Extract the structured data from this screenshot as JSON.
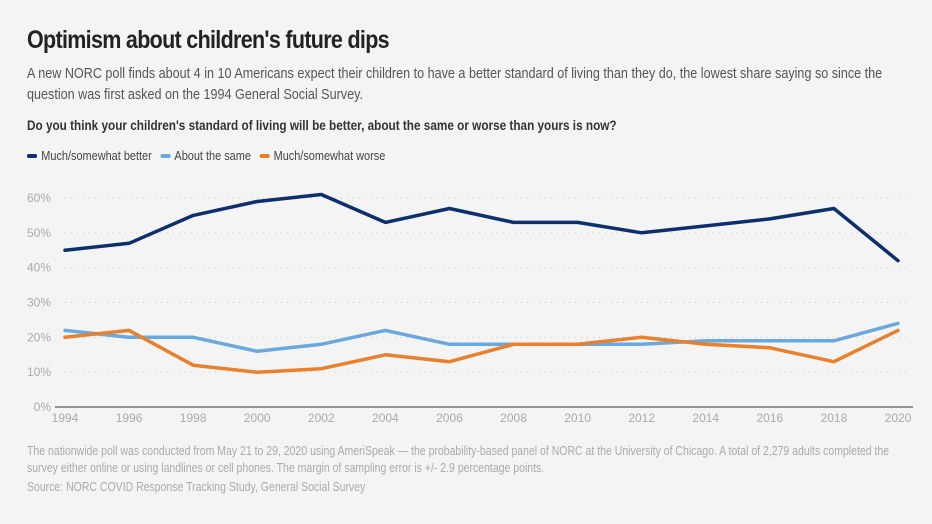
{
  "header": {
    "title": "Optimism about children's future dips",
    "subtitle": "A new NORC poll finds about 4 in 10 Americans expect their children to have a better standard of living than they do, the lowest share saying so since the question was first asked on the 1994 General Social Survey.",
    "question": "Do you think your children's standard of living will be better, about the same or worse than yours is now?"
  },
  "footer": {
    "notes": "The nationwide poll was conducted from May 21 to 29, 2020 using AmeriSpeak — the probability-based panel of NORC at the University of Chicago. A total of 2,279 adults completed the survey either online or using landlines or cell phones. The margin of sampling error is +/- 2.9 percentage points.",
    "source": "Source: NORC COVID Response Tracking Study, General Social Survey"
  },
  "chart_data": {
    "type": "line",
    "title": "Optimism about children's future dips",
    "xlabel": "",
    "ylabel": "",
    "x": [
      1994,
      1996,
      1998,
      2000,
      2002,
      2004,
      2006,
      2008,
      2010,
      2012,
      2014,
      2016,
      2018,
      2020
    ],
    "x_tick_labels": [
      "1994",
      "1996",
      "1998",
      "2000",
      "2002",
      "2004",
      "2006",
      "2008",
      "2010",
      "2012",
      "2014",
      "2016",
      "2018",
      "2020"
    ],
    "ylim": [
      0,
      60
    ],
    "y_ticks": [
      0,
      10,
      20,
      30,
      40,
      50,
      60
    ],
    "y_tick_labels": [
      "0%",
      "10%",
      "20%",
      "30%",
      "40%",
      "50%",
      "60%"
    ],
    "grid": "horizontal-dotted",
    "legend_position": "top-left",
    "series": [
      {
        "name": "Much/somewhat better",
        "color": "#0d2f6e",
        "values": [
          45,
          47,
          55,
          59,
          61,
          53,
          57,
          53,
          53,
          50,
          52,
          54,
          57,
          42
        ]
      },
      {
        "name": "About the same",
        "color": "#6aa8e0",
        "values": [
          22,
          20,
          20,
          16,
          18,
          22,
          18,
          18,
          18,
          18,
          19,
          19,
          19,
          24
        ]
      },
      {
        "name": "Much/somewhat worse",
        "color": "#e8802c",
        "values": [
          20,
          22,
          12,
          10,
          11,
          15,
          13,
          18,
          18,
          20,
          18,
          17,
          13,
          22
        ]
      }
    ]
  }
}
